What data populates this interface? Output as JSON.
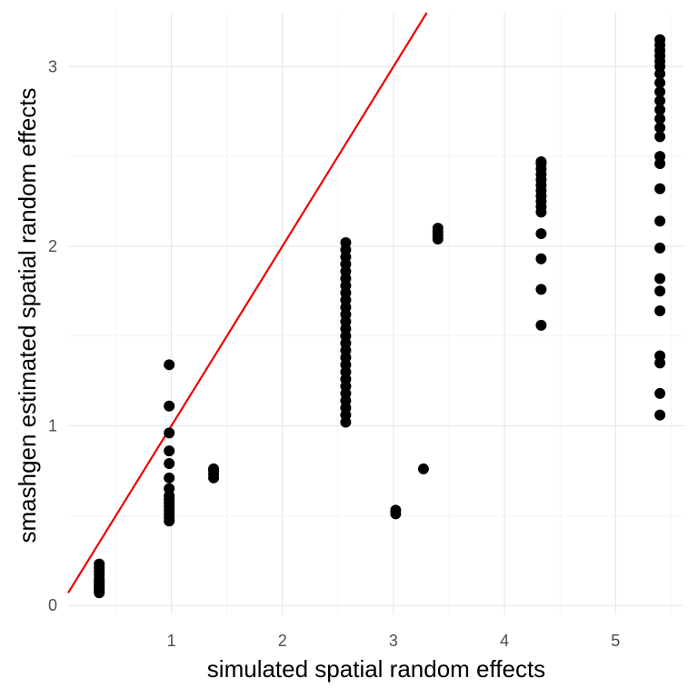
{
  "chart_data": {
    "type": "scatter",
    "xlabel": "simulated spatial random effects",
    "ylabel": "smashgen estimated spatial random effects",
    "xlim": [
      0.07,
      5.62
    ],
    "ylim": [
      -0.05,
      3.3
    ],
    "x_major_ticks": [
      1,
      2,
      3,
      4,
      5
    ],
    "x_minor_ticks": [
      0.5,
      1.5,
      2.5,
      3.5,
      4.5,
      5.5
    ],
    "y_major_ticks": [
      0,
      1,
      2,
      3
    ],
    "y_minor_ticks": [
      0.5,
      1.5,
      2.5
    ],
    "grid": true,
    "reference_line": {
      "slope": 1,
      "intercept": 0,
      "color": "#ee0000"
    },
    "point_color": "#000000",
    "series": [
      {
        "points": [
          [
            0.35,
            0.07
          ],
          [
            0.35,
            0.08
          ],
          [
            0.35,
            0.09
          ],
          [
            0.35,
            0.1
          ],
          [
            0.35,
            0.11
          ],
          [
            0.35,
            0.12
          ],
          [
            0.35,
            0.13
          ],
          [
            0.35,
            0.14
          ],
          [
            0.35,
            0.15
          ],
          [
            0.35,
            0.17
          ],
          [
            0.35,
            0.19
          ],
          [
            0.35,
            0.21
          ],
          [
            0.35,
            0.23
          ],
          [
            0.98,
            0.47
          ],
          [
            0.98,
            0.49
          ],
          [
            0.98,
            0.51
          ],
          [
            0.98,
            0.53
          ],
          [
            0.98,
            0.55
          ],
          [
            0.98,
            0.57
          ],
          [
            0.98,
            0.59
          ],
          [
            0.98,
            0.61
          ],
          [
            0.98,
            0.65
          ],
          [
            0.98,
            0.71
          ],
          [
            0.98,
            0.79
          ],
          [
            0.98,
            0.86
          ],
          [
            0.98,
            0.96
          ],
          [
            0.98,
            1.11
          ],
          [
            0.98,
            1.34
          ],
          [
            1.38,
            0.71
          ],
          [
            1.38,
            0.73
          ],
          [
            1.38,
            0.75
          ],
          [
            1.38,
            0.76
          ],
          [
            2.57,
            1.02
          ],
          [
            2.57,
            1.06
          ],
          [
            2.57,
            1.1
          ],
          [
            2.57,
            1.14
          ],
          [
            2.57,
            1.18
          ],
          [
            2.57,
            1.22
          ],
          [
            2.57,
            1.26
          ],
          [
            2.57,
            1.3
          ],
          [
            2.57,
            1.34
          ],
          [
            2.57,
            1.38
          ],
          [
            2.57,
            1.42
          ],
          [
            2.57,
            1.46
          ],
          [
            2.57,
            1.5
          ],
          [
            2.57,
            1.54
          ],
          [
            2.57,
            1.58
          ],
          [
            2.57,
            1.62
          ],
          [
            2.57,
            1.66
          ],
          [
            2.57,
            1.7
          ],
          [
            2.57,
            1.74
          ],
          [
            2.57,
            1.78
          ],
          [
            2.57,
            1.82
          ],
          [
            2.57,
            1.86
          ],
          [
            2.57,
            1.9
          ],
          [
            2.57,
            1.94
          ],
          [
            2.57,
            1.98
          ],
          [
            2.57,
            2.02
          ],
          [
            3.02,
            0.51
          ],
          [
            3.02,
            0.53
          ],
          [
            3.27,
            0.76
          ],
          [
            3.4,
            2.04
          ],
          [
            3.4,
            2.06
          ],
          [
            3.4,
            2.08
          ],
          [
            3.4,
            2.1
          ],
          [
            4.33,
            1.56
          ],
          [
            4.33,
            1.76
          ],
          [
            4.33,
            1.93
          ],
          [
            4.33,
            2.07
          ],
          [
            4.33,
            2.19
          ],
          [
            4.33,
            2.22
          ],
          [
            4.33,
            2.25
          ],
          [
            4.33,
            2.28
          ],
          [
            4.33,
            2.31
          ],
          [
            4.33,
            2.34
          ],
          [
            4.33,
            2.37
          ],
          [
            4.33,
            2.4
          ],
          [
            4.33,
            2.43
          ],
          [
            4.33,
            2.46
          ],
          [
            4.33,
            2.47
          ],
          [
            5.4,
            1.06
          ],
          [
            5.4,
            1.18
          ],
          [
            5.4,
            1.35
          ],
          [
            5.4,
            1.39
          ],
          [
            5.4,
            1.64
          ],
          [
            5.4,
            1.75
          ],
          [
            5.4,
            1.82
          ],
          [
            5.4,
            1.99
          ],
          [
            5.4,
            2.14
          ],
          [
            5.4,
            2.32
          ],
          [
            5.4,
            2.46
          ],
          [
            5.4,
            2.5
          ],
          [
            5.4,
            2.61
          ],
          [
            5.4,
            2.66
          ],
          [
            5.4,
            2.71
          ],
          [
            5.4,
            2.76
          ],
          [
            5.4,
            2.81
          ],
          [
            5.4,
            2.86
          ],
          [
            5.4,
            2.91
          ],
          [
            5.4,
            2.96
          ],
          [
            5.4,
            3.0
          ],
          [
            5.4,
            3.03
          ],
          [
            5.4,
            3.06
          ],
          [
            5.4,
            3.09
          ],
          [
            5.4,
            3.12
          ],
          [
            5.4,
            3.15
          ]
        ]
      }
    ]
  }
}
